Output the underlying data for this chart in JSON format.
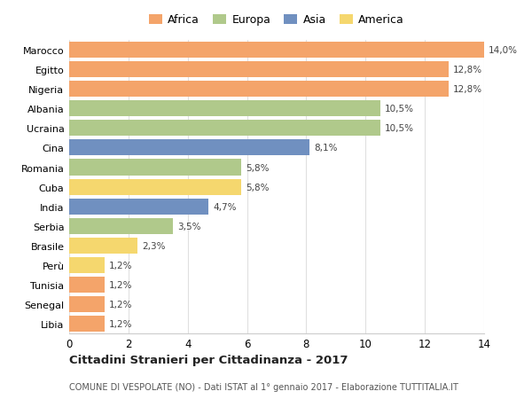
{
  "categories": [
    "Marocco",
    "Egitto",
    "Nigeria",
    "Albania",
    "Ucraina",
    "Cina",
    "Romania",
    "Cuba",
    "India",
    "Serbia",
    "Brasile",
    "Perù",
    "Tunisia",
    "Senegal",
    "Libia"
  ],
  "values": [
    14.0,
    12.8,
    12.8,
    10.5,
    10.5,
    8.1,
    5.8,
    5.8,
    4.7,
    3.5,
    2.3,
    1.2,
    1.2,
    1.2,
    1.2
  ],
  "labels": [
    "14,0%",
    "12,8%",
    "12,8%",
    "10,5%",
    "10,5%",
    "8,1%",
    "5,8%",
    "5,8%",
    "4,7%",
    "3,5%",
    "2,3%",
    "1,2%",
    "1,2%",
    "1,2%",
    "1,2%"
  ],
  "continent": [
    "Africa",
    "Africa",
    "Africa",
    "Europa",
    "Europa",
    "Asia",
    "Europa",
    "America",
    "Asia",
    "Europa",
    "America",
    "America",
    "Africa",
    "Africa",
    "Africa"
  ],
  "colors": {
    "Africa": "#F4A46A",
    "Europa": "#B0C98B",
    "Asia": "#7090C0",
    "America": "#F5D76E"
  },
  "legend_order": [
    "Africa",
    "Europa",
    "Asia",
    "America"
  ],
  "title": "Cittadini Stranieri per Cittadinanza - 2017",
  "subtitle": "COMUNE DI VESPOLATE (NO) - Dati ISTAT al 1° gennaio 2017 - Elaborazione TUTTITALIA.IT",
  "xlim": [
    0,
    14
  ],
  "xticks": [
    0,
    2,
    4,
    6,
    8,
    10,
    12,
    14
  ],
  "background_color": "#ffffff",
  "grid_color": "#e0e0e0",
  "bar_height": 0.82
}
